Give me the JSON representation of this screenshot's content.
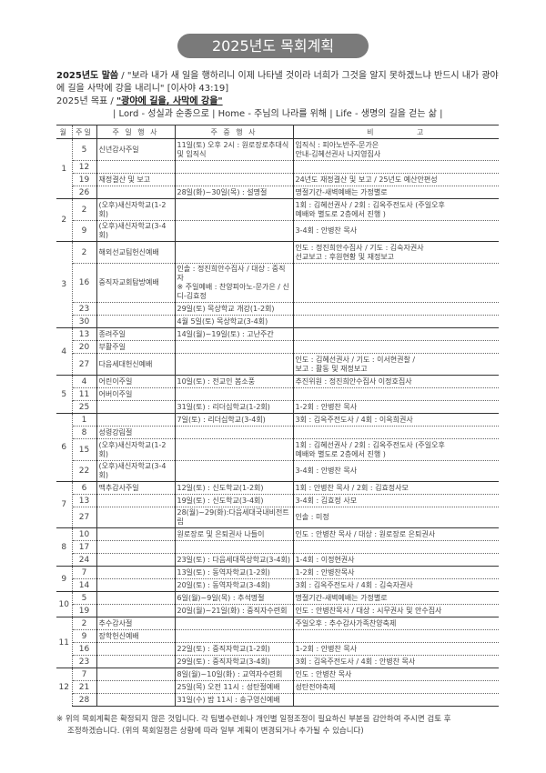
{
  "title": "2025년도 목회계획",
  "verse": {
    "label": "2025년도 말씀",
    "text": " / \"보라 내가 새 일을 행하리니 이제 나타낼 것이라 너희가 그것을 알지 못하겠느냐 반드시 내가 광야에 길을 사막에 강을 내리니\" [이사야 43:19]"
  },
  "goal": {
    "label": "2025년 목표",
    "sep": " / ",
    "value": "\"광야에 길을, 사막에 강을\"",
    "motto": "| Lord - 성실과 순종으로 | Home - 주님의 나라를 위해 | Life - 생명의 길을 걷는 삶 |"
  },
  "table": {
    "headers": [
      "월",
      "주일",
      "주 일 행 사",
      "주 중 행 사",
      "비          고"
    ],
    "months": [
      {
        "month": "1",
        "weeks": [
          {
            "week": "5",
            "sunday": "신년감사주일",
            "weekday": "11일(토) 오후 2시 : 원로장로추대식\n및 임직식",
            "note": "임직식 : 피아노반주-문가은\n안내-김혜선권사 나지영집사",
            "tall": true
          },
          {
            "week": "12",
            "sunday": "",
            "weekday": "",
            "note": ""
          },
          {
            "week": "19",
            "sunday": "재정결산 및 보고",
            "weekday": "",
            "note": "24년도 재정결산 및 보고 / 25년도 예산안편성"
          },
          {
            "week": "26",
            "sunday": "",
            "weekday": "28일(화)~30일(목) : 설명절",
            "note": "명절기간-새벽예배는 가정별로"
          }
        ]
      },
      {
        "month": "2",
        "weeks": [
          {
            "week": "2",
            "sunday": "(오후)새신자학교(1-2회)",
            "weekday": "",
            "note": "1회 : 김혜선권사 / 2회 : 김옥주전도사 (주일오후\n예배와 별도로 2층에서 진행 )",
            "tall": true
          },
          {
            "week": "9",
            "sunday": "(오후)새신자학교(3-4회)",
            "weekday": "",
            "note": "3-4회 : 안병찬 목사"
          }
        ]
      },
      {
        "month": "3",
        "weeks": [
          {
            "week": "2",
            "sunday": "해외선교팀헌신예배",
            "weekday": "",
            "note": "인도 : 정진희안수집사 / 기도 : 김숙자권사\n선교보고 : 후원현황 및 재정보고",
            "tall": true
          },
          {
            "week": "16",
            "sunday": "중직자교회탐방예배",
            "weekday": "인솔 : 정진희안수집사 / 대상 : 중직자\n※ 주일예배 : 찬양피아노-문가은 / 신디-김효정",
            "note": "",
            "tall": true
          },
          {
            "week": "23",
            "sunday": "",
            "weekday": "29일(토) 목상학교 개강(1-2회)",
            "note": ""
          },
          {
            "week": "30",
            "sunday": "",
            "weekday": "4월 5일(토) 목상학교(3-4회)",
            "note": ""
          }
        ]
      },
      {
        "month": "4",
        "weeks": [
          {
            "week": "13",
            "sunday": "종려주일",
            "weekday": "14일(월)~19일(토) : 고난주간",
            "note": ""
          },
          {
            "week": "20",
            "sunday": "부활주일",
            "weekday": "",
            "note": ""
          },
          {
            "week": "27",
            "sunday": "다음세대헌신예배",
            "weekday": "",
            "note": "인도 : 김혜선권사 / 기도 : 이서현권찰 /\n보고 : 활동 및 재정보고",
            "tall": true
          }
        ]
      },
      {
        "month": "5",
        "weeks": [
          {
            "week": "4",
            "sunday": "어린이주일",
            "weekday": "10일(토) : 전교인 봄소풍",
            "note": "추진위원 : 정진희안수집사 이정호집사"
          },
          {
            "week": "11",
            "sunday": "어버이주일",
            "weekday": "",
            "note": ""
          },
          {
            "week": "25",
            "sunday": "",
            "weekday": "31일(토) : 리더십학교(1-2회)",
            "note": "1-2회 : 안병찬 목사"
          }
        ]
      },
      {
        "month": "6",
        "weeks": [
          {
            "week": "1",
            "sunday": "",
            "weekday": "7일(토) : 리더십학교(3-4회)",
            "note": "3회 : 김옥주전도사 / 4회 : 이옥희권사"
          },
          {
            "week": "8",
            "sunday": "성령강림절",
            "weekday": "",
            "note": ""
          },
          {
            "week": "15",
            "sunday": "(오후)새신자학교(1-2회)",
            "weekday": "",
            "note": "1회 : 김혜선권사 / 2회 : 김옥주전도사 (주일오후\n예배와 별도로 2층에서 진행 )",
            "tall": true
          },
          {
            "week": "22",
            "sunday": "(오후)새신자학교(3-4회)",
            "weekday": "",
            "note": "3-4회 : 안병찬 목사"
          }
        ]
      },
      {
        "month": "7",
        "weeks": [
          {
            "week": "6",
            "sunday": "맥추감사주일",
            "weekday": "12일(토) : 신도학교(1-2회)",
            "note": "1회 : 안병찬 목사 / 2회 : 김효정사모"
          },
          {
            "week": "13",
            "sunday": "",
            "weekday": "19일(토) : 신도학교(3-4회)",
            "note": "3-4회 : 김효정 사모"
          },
          {
            "week": "27",
            "sunday": "",
            "weekday": "28(월)~29(화):다음세대국내비전트립",
            "note": "인솔 : 미정"
          }
        ]
      },
      {
        "month": "8",
        "weeks": [
          {
            "week": "10",
            "sunday": "",
            "weekday": "원로장로 및 은퇴권사 나들이",
            "note": "인도 : 안병찬 목사 / 대상 : 원로장로 은퇴권사"
          },
          {
            "week": "17",
            "sunday": "",
            "weekday": "",
            "note": ""
          },
          {
            "week": "24",
            "sunday": "",
            "weekday": "23일(토) : 다음세대목상학교(3-4회)",
            "note": "1-4회 :  이정현권사"
          }
        ]
      },
      {
        "month": "9",
        "weeks": [
          {
            "week": "7",
            "sunday": "",
            "weekday": "13일(토) : 동역자학교(1-2회)",
            "note": "1-2회 : 안병찬목사"
          },
          {
            "week": "14",
            "sunday": "",
            "weekday": "20일(토) : 동역자학교(3-4회)",
            "note": "3회 : 김옥주전도사 / 4회 : 김숙자권사"
          }
        ]
      },
      {
        "month": "10",
        "weeks": [
          {
            "week": "5",
            "sunday": "",
            "weekday": "6일(월)~9일(목) : 추석명절",
            "note": "명절기간-새벽예배는 가정별로"
          },
          {
            "week": "19",
            "sunday": "",
            "weekday": "20일(월)~21일(화) : 중직자수련회",
            "note": "인도 : 안병찬목사 / 대상 : 시무권사 및 안수집사"
          }
        ]
      },
      {
        "month": "11",
        "weeks": [
          {
            "week": "2",
            "sunday": "추수감사절",
            "weekday": "",
            "note": "주일오후 : 추수감사가족찬양축제"
          },
          {
            "week": "9",
            "sunday": "장학헌신예배",
            "weekday": "",
            "note": ""
          },
          {
            "week": "16",
            "sunday": "",
            "weekday": "22일(토) : 중직자학교(1-2회)",
            "note": "1-2회 : 안병찬 목사"
          },
          {
            "week": "23",
            "sunday": "",
            "weekday": "29일(토) : 중직자학교(3-4회)",
            "note": "3회 : 김옥주전도사 / 4회 : 안병찬 목사"
          }
        ]
      },
      {
        "month": "12",
        "weeks": [
          {
            "week": "7",
            "sunday": "",
            "weekday": "8일(월)~10일(화) : 교역자수련회",
            "note": "인도 : 안병찬 목사"
          },
          {
            "week": "21",
            "sunday": "",
            "weekday": "25일(목) 오전 11시 : 성탄절예배",
            "note": "성탄전야축제"
          },
          {
            "week": "28",
            "sunday": "",
            "weekday": "31일(수) 밤 11시 : 송구영신예배",
            "note": ""
          }
        ]
      }
    ]
  },
  "footnote": {
    "line1": "※ 위의 목회계획은 확정되지 않은 것입니다. 각 팀별수련회나 개인별 일정조정이 필요하신 부분을 감안하여 주시면 검토 후",
    "line2": "조정하겠습니다. (위의 목회일정은 상황에 따라 일부 계획이 변경되거나 추가될 수 있습니다)"
  }
}
